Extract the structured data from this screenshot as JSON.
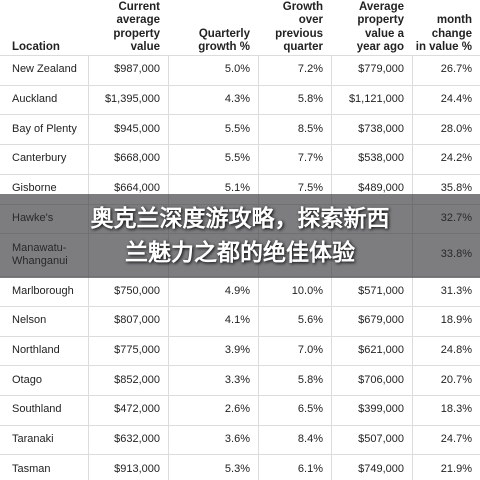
{
  "table": {
    "header": [
      [
        "Location"
      ],
      [
        "Current",
        "average",
        "property",
        "value"
      ],
      [
        "Quarterly",
        "growth %"
      ],
      [
        "Growth",
        "over",
        "previous",
        "quarter"
      ],
      [
        "Average",
        "property",
        "value a",
        "year ago"
      ],
      [
        "month",
        "change",
        "in value %"
      ]
    ],
    "rows": [
      [
        "New Zealand",
        "$987,000",
        "5.0%",
        "7.2%",
        "$779,000",
        "26.7%"
      ],
      [
        "Auckland",
        "$1,395,000",
        "4.3%",
        "5.8%",
        "$1,121,000",
        "24.4%"
      ],
      [
        "Bay of Plenty",
        "$945,000",
        "5.5%",
        "8.5%",
        "$738,000",
        "28.0%"
      ],
      [
        "Canterbury",
        "$668,000",
        "5.5%",
        "7.7%",
        "$538,000",
        "24.2%"
      ],
      [
        "Gisborne",
        "$664,000",
        "5.1%",
        "7.5%",
        "$489,000",
        "35.8%"
      ],
      [
        "Hawke's",
        null,
        null,
        null,
        null,
        "32.7%"
      ],
      [
        "Manawatu-Whanganui",
        null,
        null,
        null,
        null,
        "33.8%"
      ],
      [
        "Marlborough",
        "$750,000",
        "4.9%",
        "10.0%",
        "$571,000",
        "31.3%"
      ],
      [
        "Nelson",
        "$807,000",
        "4.1%",
        "5.6%",
        "$679,000",
        "18.9%"
      ],
      [
        "Northland",
        "$775,000",
        "3.9%",
        "7.0%",
        "$621,000",
        "24.8%"
      ],
      [
        "Otago",
        "$852,000",
        "3.3%",
        "5.8%",
        "$706,000",
        "20.7%"
      ],
      [
        "Southland",
        "$472,000",
        "2.6%",
        "6.5%",
        "$399,000",
        "18.3%"
      ],
      [
        "Taranaki",
        "$632,000",
        "3.6%",
        "8.4%",
        "$507,000",
        "24.7%"
      ],
      [
        "Tasman",
        "$913,000",
        "5.3%",
        "6.1%",
        "$749,000",
        "21.9%"
      ]
    ]
  },
  "banner": {
    "lines": [
      "奥克兰深度游攻略，探索新西",
      "兰魅力之都的绝佳体验"
    ]
  }
}
